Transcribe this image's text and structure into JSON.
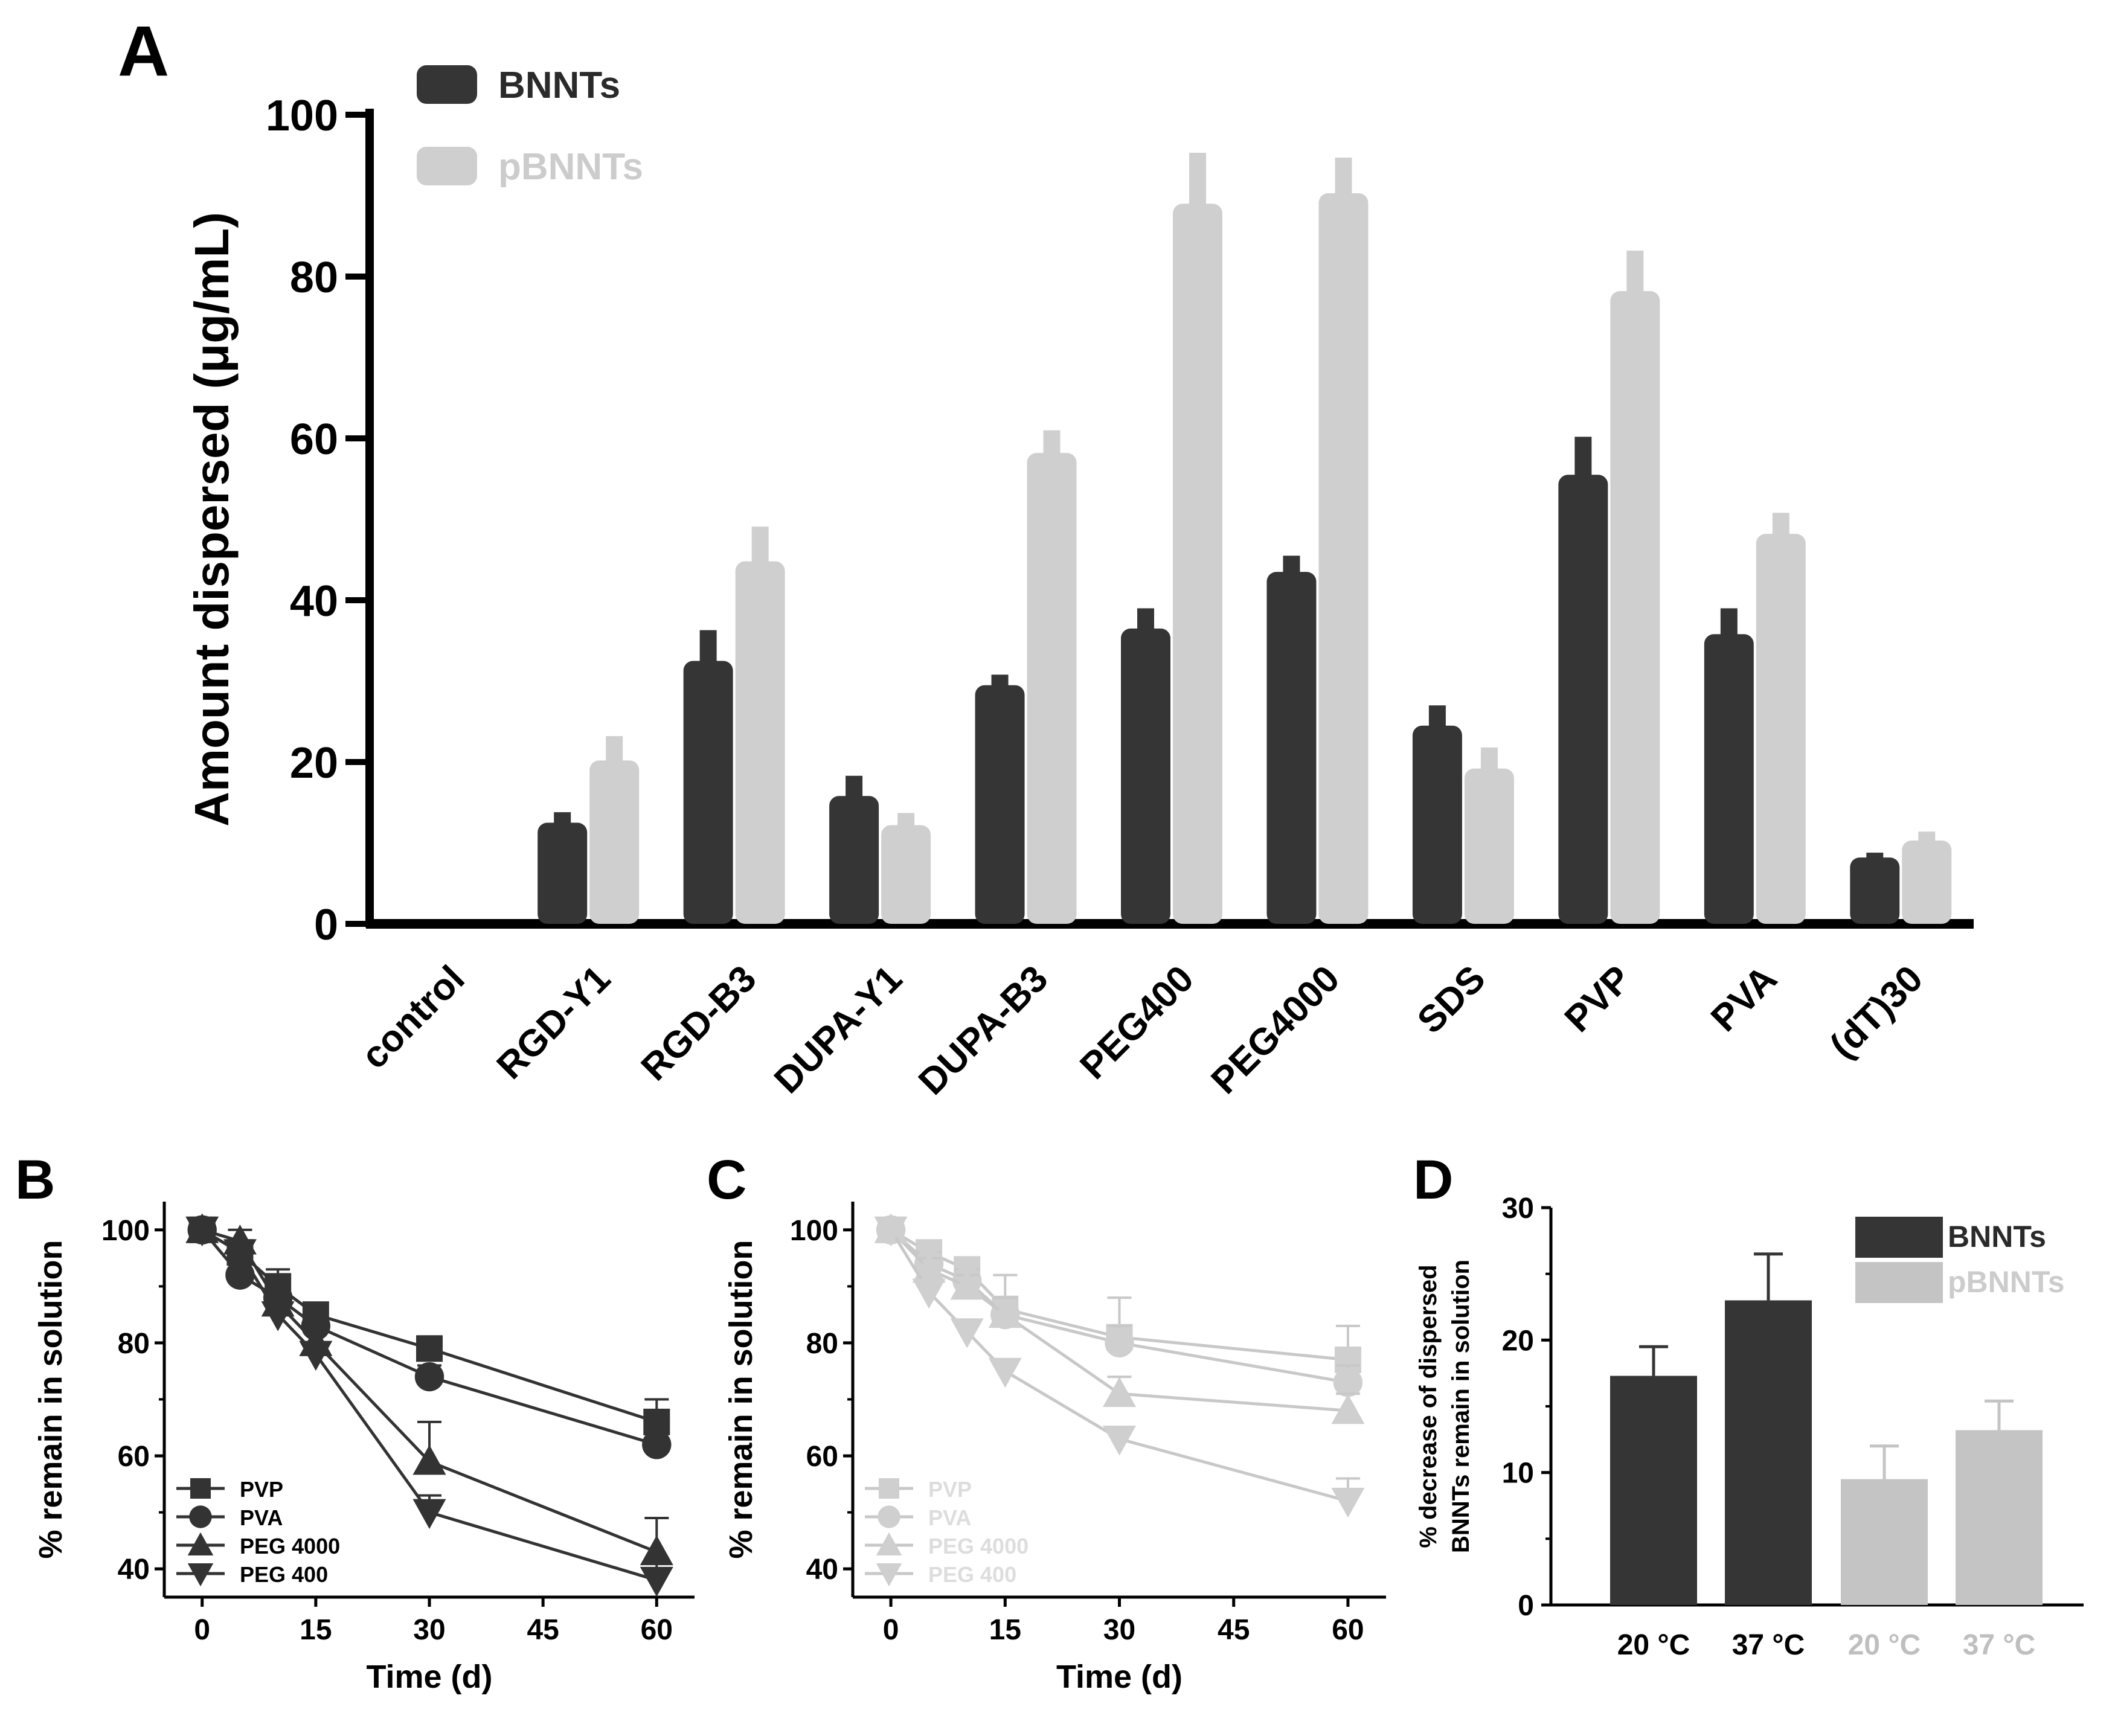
{
  "colors": {
    "dark": "#353535",
    "light": "#cfcfcf",
    "axis": "#000000"
  },
  "chart_data": [
    {
      "panel": "A",
      "type": "bar",
      "title": "",
      "xlabel": "",
      "ylabel": "Amount dispersed (μg/mL)",
      "ylim": [
        0,
        100
      ],
      "yticks": [
        0,
        20,
        40,
        60,
        80,
        100
      ],
      "grid": false,
      "legend_position": "top-left",
      "categories": [
        "control",
        "RGD-Y1",
        "RGD-B3",
        "DUPA-Y1",
        "DUPA-B3",
        "PEG400",
        "PEG4000",
        "SDS",
        "PVP",
        "PVA",
        "(dT)30"
      ],
      "series": [
        {
          "name": "BNNTs",
          "color": "#353535",
          "values": [
            0,
            12.5,
            32.5,
            15.8,
            29.5,
            36.5,
            43.5,
            24.5,
            55.5,
            35.8,
            8.2
          ],
          "errors": [
            0,
            1.3,
            3.8,
            2.5,
            1.3,
            2.5,
            2.0,
            2.5,
            4.7,
            3.2,
            0.6
          ]
        },
        {
          "name": "pBNNTs",
          "color": "#cfcfcf",
          "values": [
            0,
            20.2,
            44.8,
            12.2,
            58.2,
            89.0,
            90.3,
            19.2,
            78.2,
            48.2,
            10.3
          ],
          "errors": [
            0,
            3.0,
            4.3,
            1.5,
            2.8,
            6.3,
            4.4,
            2.6,
            5.0,
            2.6,
            1.1
          ]
        }
      ]
    },
    {
      "panel": "B",
      "type": "line",
      "xlabel": "Time (d)",
      "ylabel": "% remain in solution",
      "xlim": [
        -5,
        65
      ],
      "ylim": [
        35,
        105
      ],
      "xticks": [
        0,
        15,
        30,
        45,
        60
      ],
      "yticks": [
        40,
        60,
        80,
        100
      ],
      "legend_position": "bottom-left",
      "x": [
        0,
        5,
        10,
        15,
        30,
        60
      ],
      "series": [
        {
          "name": "PVP",
          "marker": "square",
          "values": [
            100,
            96,
            90,
            85,
            79,
            66
          ],
          "errors": [
            1,
            2,
            3,
            2,
            2,
            4
          ]
        },
        {
          "name": "PVA",
          "marker": "circle",
          "values": [
            100,
            92,
            88,
            83,
            74,
            62
          ],
          "errors": [
            1,
            2,
            2,
            2,
            2,
            3
          ]
        },
        {
          "name": "PEG 4000",
          "marker": "triangle-up",
          "values": [
            100,
            98,
            87,
            80,
            59,
            43
          ],
          "errors": [
            1,
            2,
            3,
            3,
            7,
            6
          ]
        },
        {
          "name": "PEG 400",
          "marker": "triangle-down",
          "values": [
            100,
            96,
            85,
            78,
            50,
            38
          ],
          "errors": [
            1,
            2,
            3,
            2,
            3,
            3
          ]
        }
      ]
    },
    {
      "panel": "C",
      "type": "line",
      "xlabel": "Time (d)",
      "ylabel": "% remain in solution",
      "xlim": [
        -5,
        65
      ],
      "ylim": [
        35,
        105
      ],
      "xticks": [
        0,
        15,
        30,
        45,
        60
      ],
      "yticks": [
        40,
        60,
        80,
        100
      ],
      "legend_position": "bottom-left",
      "x": [
        0,
        5,
        10,
        15,
        30,
        60
      ],
      "series": [
        {
          "name": "PVP",
          "marker": "square",
          "values": [
            100,
            96,
            93,
            86,
            81,
            77
          ],
          "errors": [
            1,
            2,
            2,
            6,
            7,
            6
          ]
        },
        {
          "name": "PVA",
          "marker": "circle",
          "values": [
            100,
            94,
            91,
            85,
            80,
            73
          ],
          "errors": [
            1,
            2,
            2,
            3,
            3,
            3
          ]
        },
        {
          "name": "PEG 4000",
          "marker": "triangle-up",
          "values": [
            100,
            93,
            90,
            85,
            71,
            68
          ],
          "errors": [
            1,
            2,
            2,
            3,
            3,
            3
          ]
        },
        {
          "name": "PEG 400",
          "marker": "triangle-down",
          "values": [
            100,
            89,
            82,
            75,
            63,
            52
          ],
          "errors": [
            1,
            2,
            2,
            2,
            2,
            4
          ]
        }
      ]
    },
    {
      "panel": "D",
      "type": "bar",
      "xlabel": "",
      "ylabel": "% decrease of dispersed BNNTs remain in solution",
      "ylabel_lines": [
        "% decrease of dispersed",
        "BNNTs remain in solution"
      ],
      "ylim": [
        0,
        30
      ],
      "yticks": [
        0,
        10,
        20,
        30
      ],
      "legend_position": "top-right",
      "legend": [
        "BNNTs",
        "pBNNTs"
      ],
      "categories": [
        "20 °C",
        "37 °C",
        "20 °C",
        "37 °C"
      ],
      "tick_label_colors": [
        "#000000",
        "#000000",
        "#bfbfbf",
        "#bfbfbf"
      ],
      "values": [
        17.3,
        23.0,
        9.5,
        13.2
      ],
      "errors": [
        2.2,
        3.5,
        2.5,
        2.2
      ],
      "bar_colors": [
        "#353535",
        "#353535",
        "#c4c4c4",
        "#c4c4c4"
      ]
    }
  ]
}
